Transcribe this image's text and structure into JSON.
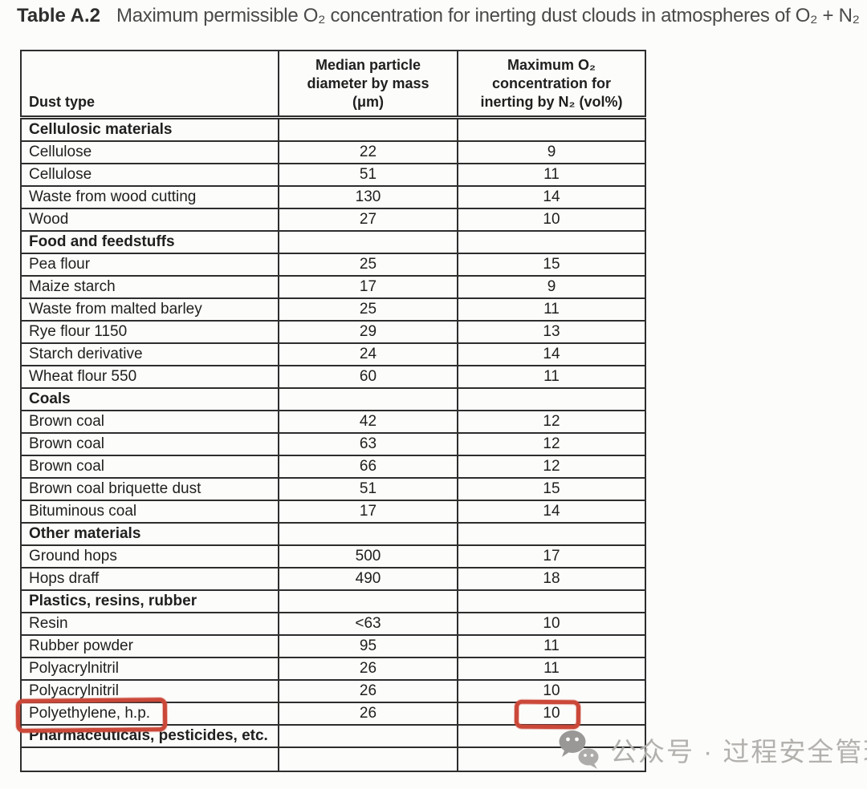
{
  "page": {
    "title_label": "Table A.2",
    "title_text": "Maximum permissible O₂ concentration for inerting dust clouds in atmospheres of O₂ + N₂"
  },
  "table": {
    "headers": {
      "dust_type": "Dust type",
      "diameter": "Median particle\ndiameter by mass\n(μm)",
      "o2": "Maximum O₂\nconcentration for\ninerting by N₂ (vol%)"
    },
    "rows": [
      {
        "type": "section",
        "name": "Cellulosic materials"
      },
      {
        "type": "data",
        "name": "Cellulose",
        "diameter": "22",
        "o2": "9"
      },
      {
        "type": "data",
        "name": "Cellulose",
        "diameter": "51",
        "o2": "11"
      },
      {
        "type": "data",
        "name": "Waste from wood cutting",
        "diameter": "130",
        "o2": "14"
      },
      {
        "type": "data",
        "name": "Wood",
        "diameter": "27",
        "o2": "10"
      },
      {
        "type": "section",
        "name": "Food and feedstuffs"
      },
      {
        "type": "data",
        "name": "Pea flour",
        "diameter": "25",
        "o2": "15"
      },
      {
        "type": "data",
        "name": "Maize starch",
        "diameter": "17",
        "o2": "9"
      },
      {
        "type": "data",
        "name": "Waste from malted barley",
        "diameter": "25",
        "o2": "11"
      },
      {
        "type": "data",
        "name": "Rye flour 1150",
        "diameter": "29",
        "o2": "13"
      },
      {
        "type": "data",
        "name": "Starch derivative",
        "diameter": "24",
        "o2": "14"
      },
      {
        "type": "data",
        "name": "Wheat flour 550",
        "diameter": "60",
        "o2": "11"
      },
      {
        "type": "section",
        "name": "Coals"
      },
      {
        "type": "data",
        "name": "Brown coal",
        "diameter": "42",
        "o2": "12"
      },
      {
        "type": "data",
        "name": "Brown coal",
        "diameter": "63",
        "o2": "12"
      },
      {
        "type": "data",
        "name": "Brown coal",
        "diameter": "66",
        "o2": "12"
      },
      {
        "type": "data",
        "name": "Brown coal briquette dust",
        "diameter": "51",
        "o2": "15"
      },
      {
        "type": "data",
        "name": "Bituminous coal",
        "diameter": "17",
        "o2": "14"
      },
      {
        "type": "section",
        "name": "Other materials"
      },
      {
        "type": "data",
        "name": "Ground hops",
        "diameter": "500",
        "o2": "17"
      },
      {
        "type": "data",
        "name": "Hops draff",
        "diameter": "490",
        "o2": "18"
      },
      {
        "type": "section",
        "name": "Plastics, resins, rubber"
      },
      {
        "type": "data",
        "name": "Resin",
        "diameter": "<63",
        "o2": "10"
      },
      {
        "type": "data",
        "name": "Rubber powder",
        "diameter": "95",
        "o2": "11"
      },
      {
        "type": "data",
        "name": "Polyacrylnitril",
        "diameter": "26",
        "o2": "11"
      },
      {
        "type": "data",
        "name": "Polyacrylnitril",
        "diameter": "26",
        "o2": "10"
      },
      {
        "type": "data",
        "name": "Polyethylene, h.p.",
        "diameter": "26",
        "o2": "10",
        "annotate_name": true,
        "annotate_o2": true
      },
      {
        "type": "section",
        "name": "Pharmaceuticals, pesticides, etc."
      }
    ]
  },
  "annotations": {
    "color": "#cb4839",
    "boxes": [
      "polyethylene-name",
      "polyethylene-o2-value"
    ]
  },
  "watermark": {
    "icon": "wechat-logo-icon",
    "text": "公众号 · 过程安全管理"
  }
}
